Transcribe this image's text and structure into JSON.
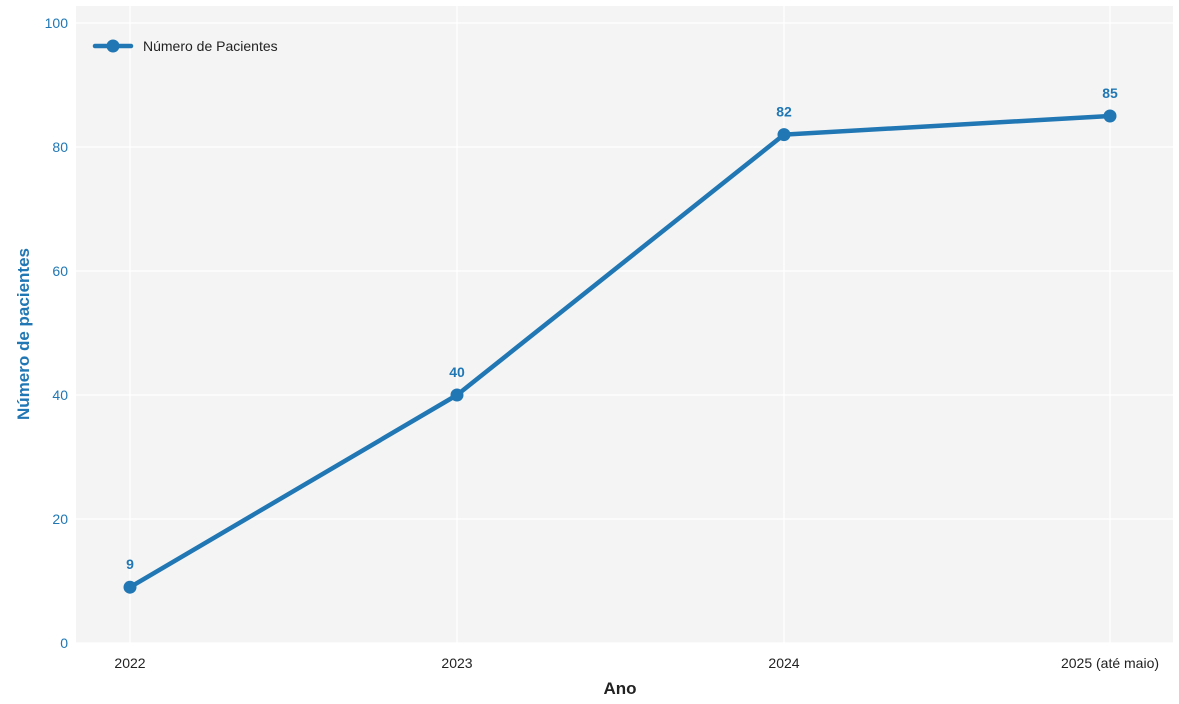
{
  "colors": {
    "series": "#2077b4",
    "plot_background": "#f4f4f4",
    "grid": "#ffffff",
    "x_tick_text": "#222222",
    "x_title_text": "#222222",
    "y_tick_text": "#2077b4",
    "y_title_text": "#2077b4"
  },
  "chart_data": {
    "type": "line",
    "title": "",
    "xlabel": "Ano",
    "ylabel": "Número de pacientes",
    "categories": [
      "2022",
      "2023",
      "2024",
      "2025 (até maio)"
    ],
    "ylim": [
      0,
      100
    ],
    "yticks": [
      0,
      20,
      40,
      60,
      80,
      100
    ],
    "grid": true,
    "legend": "top-left",
    "series": [
      {
        "name": "Número de Pacientes",
        "values": [
          9,
          40,
          82,
          85
        ],
        "labels": [
          "9",
          "40",
          "82",
          "85"
        ],
        "marker": "circle"
      }
    ]
  }
}
